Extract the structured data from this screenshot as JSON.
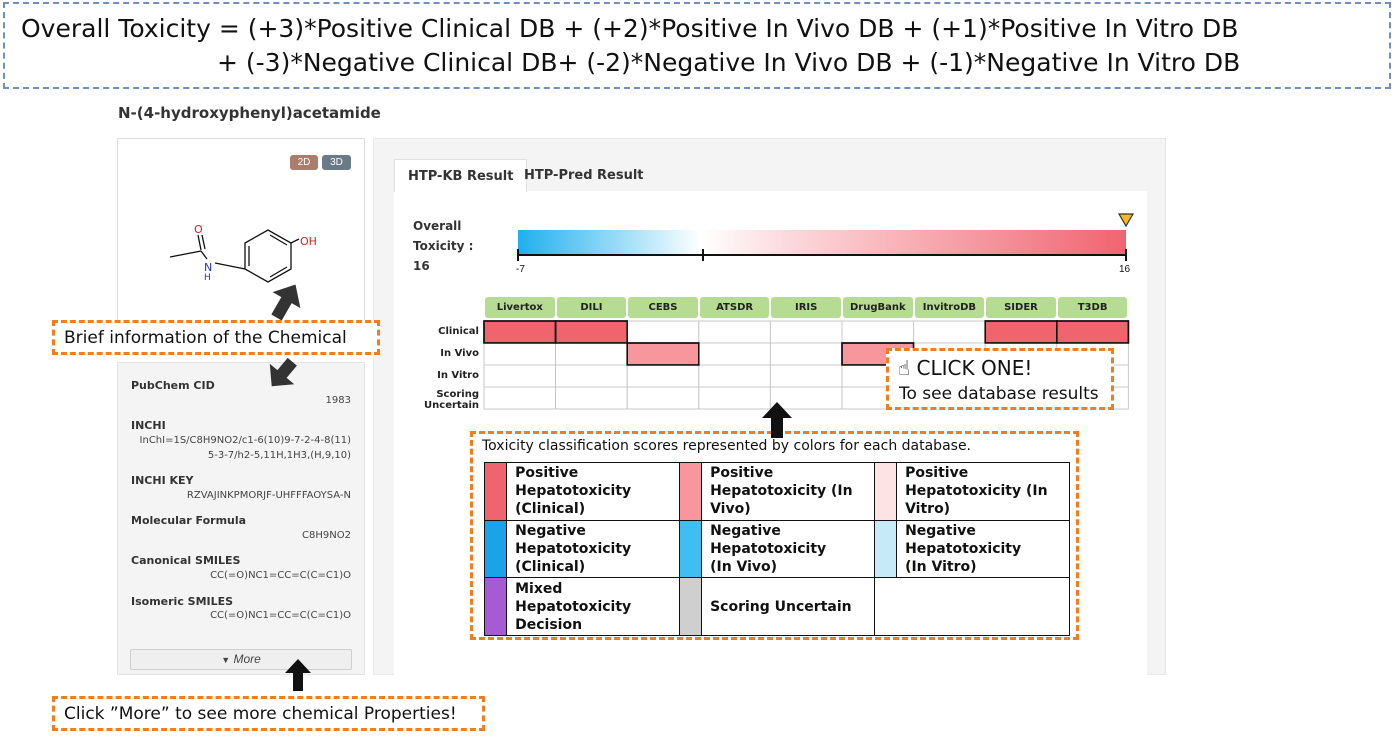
{
  "formula": {
    "line1": "Overall Toxicity = (+3)*Positive Clinical DB + (+2)*Positive In Vivo DB + (+1)*Positive In Vitro DB",
    "line2": "+ (-3)*Negative Clinical DB+ (-2)*Negative In Vivo DB + (-1)*Negative In Vitro DB"
  },
  "chemical": {
    "name": "N-(4-hydroxyphenyl)acetamide",
    "view_buttons": [
      "2D",
      "3D"
    ],
    "structure_atoms": {
      "oxygen_carbonyl": "O",
      "nitrogen": "N",
      "hydrogen": "H",
      "hydroxyl": "OH"
    }
  },
  "properties": [
    {
      "label": "PubChem CID",
      "value_lines": [
        "1983"
      ]
    },
    {
      "label": "INCHI",
      "value_lines": [
        "InChI=1S/C8H9NO2/c1-6(10)9-7-2-4-8(11)",
        "5-3-7/h2-5,11H,1H3,(H,9,10)"
      ]
    },
    {
      "label": "INCHI KEY",
      "value_lines": [
        "RZVAJINKPMORJF-UHFFFAOYSA-N"
      ]
    },
    {
      "label": "Molecular Formula",
      "value_lines": [
        "C8H9NO2"
      ]
    },
    {
      "label": "Canonical SMILES",
      "value_lines": [
        "CC(=O)NC1=CC=C(C=C1)O"
      ]
    },
    {
      "label": "Isomeric SMILES",
      "value_lines": [
        "CC(=O)NC1=CC=C(C=C1)O"
      ]
    }
  ],
  "more_button": {
    "icon": "triangle-down-icon",
    "label": "More"
  },
  "tabs": [
    "HTP-KB Result",
    "HTP-Pred Result"
  ],
  "overall_toxicity": {
    "label_line1": "Overall",
    "label_line2": "Toxicity :",
    "value": "16",
    "scale_min": "-7",
    "scale_max": "16",
    "min_value": -7,
    "max_value": 16,
    "zero_value": 0,
    "marker_value": 16
  },
  "databases": [
    "Livertox",
    "DILI",
    "CEBS",
    "ATSDR",
    "IRIS",
    "DrugBank",
    "InvitroDB",
    "SIDER",
    "T3DB"
  ],
  "row_labels": [
    {
      "line1": "Clinical",
      "line2": ""
    },
    {
      "line1": "In Vivo",
      "line2": ""
    },
    {
      "line1": "In Vitro",
      "line2": ""
    },
    {
      "line1": "Scoring",
      "line2": "Uncertain"
    }
  ],
  "grid_cells": [
    {
      "row": 0,
      "col": 0,
      "kind": "pos_clinical"
    },
    {
      "row": 0,
      "col": 1,
      "kind": "pos_clinical"
    },
    {
      "row": 0,
      "col": 7,
      "kind": "pos_clinical"
    },
    {
      "row": 0,
      "col": 8,
      "kind": "pos_clinical"
    },
    {
      "row": 1,
      "col": 2,
      "kind": "pos_invivo"
    },
    {
      "row": 1,
      "col": 5,
      "kind": "pos_invivo"
    }
  ],
  "colors": {
    "pos_clinical": "#f0646e",
    "pos_invivo": "#f7969d",
    "pos_invitro": "#fde3e3",
    "neg_clinical": "#1aa3e8",
    "neg_invivo": "#3fbff0",
    "neg_invitro": "#c7eaf9",
    "mixed": "#a45bd4",
    "uncertain": "#cfcfcf",
    "callout_orange": "#f07d1f",
    "db_header_green": "#b6dc93"
  },
  "click_callout": {
    "icon": "pointing-hand-icon",
    "title": "CLICK ONE!",
    "subtitle": "To see database results"
  },
  "legend": {
    "title": "Toxicity classification scores represented by colors for each database.",
    "rows": [
      [
        {
          "color_key": "pos_clinical",
          "lines": [
            "Positive",
            "Hepatotoxicity",
            "(Clinical)"
          ]
        },
        {
          "color_key": "pos_invivo",
          "lines": [
            "Positive",
            "Hepatotoxicity (In",
            "Vivo)"
          ]
        },
        {
          "color_key": "pos_invitro",
          "lines": [
            "Positive",
            "Hepatotoxicity (In",
            "Vitro)"
          ]
        }
      ],
      [
        {
          "color_key": "neg_clinical",
          "lines": [
            "Negative",
            "Hepatotoxicity",
            "(Clinical)"
          ]
        },
        {
          "color_key": "neg_invivo",
          "lines": [
            "Negative",
            "Hepatotoxicity",
            "(In Vivo)"
          ]
        },
        {
          "color_key": "neg_invitro",
          "lines": [
            "Negative",
            "Hepatotoxicity",
            "(In Vitro)"
          ]
        }
      ],
      [
        {
          "color_key": "mixed",
          "lines": [
            "Mixed Hepatotoxicity",
            "Decision"
          ]
        },
        {
          "color_key": "uncertain",
          "lines": [
            "Scoring Uncertain"
          ]
        },
        {
          "color_key": "",
          "lines": []
        }
      ]
    ]
  },
  "annotations": {
    "brief_info": "Brief information of the Chemical",
    "click_more": "Click ”More” to see more chemical Properties!"
  }
}
